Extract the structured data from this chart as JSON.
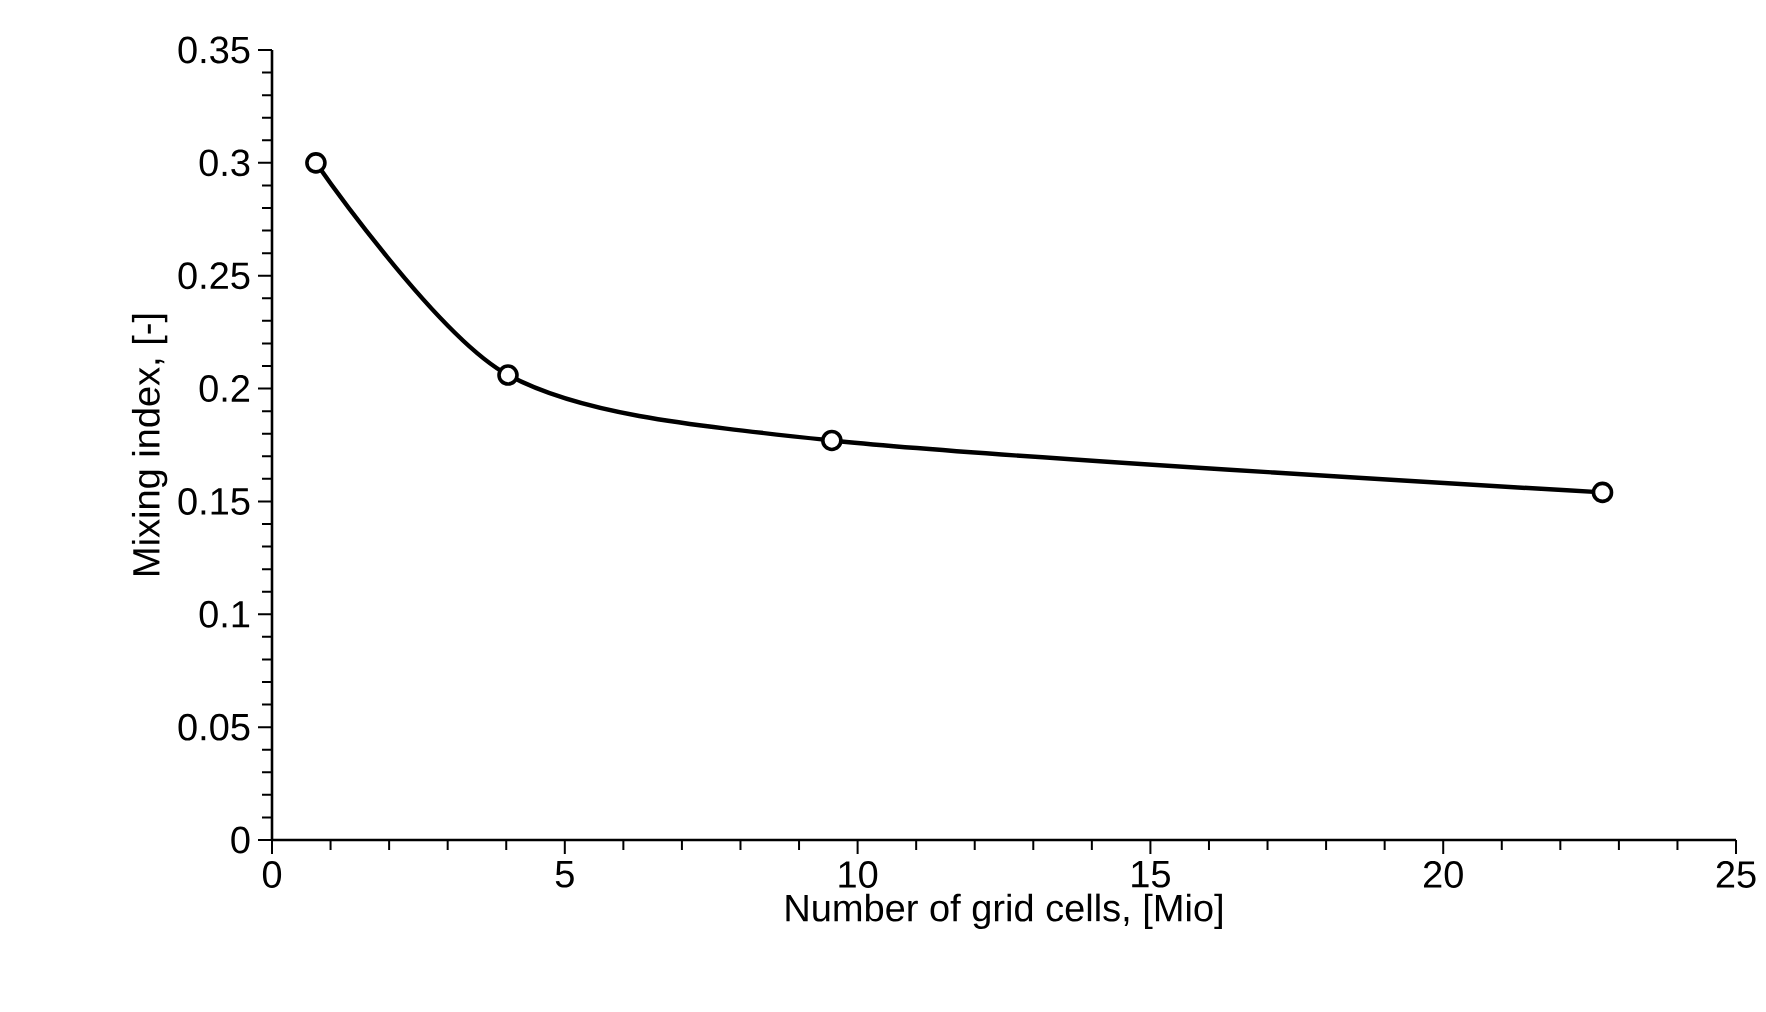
{
  "chart_data": {
    "type": "line",
    "xlabel": "Number of grid cells, [Mio]",
    "ylabel": "Mixing index, [-]",
    "series": [
      {
        "color": "#000000",
        "x": [
          0.75,
          4.03,
          9.56,
          22.72
        ],
        "values": [
          0.3,
          0.206,
          0.177,
          0.154
        ]
      }
    ],
    "xlim": [
      0,
      25
    ],
    "ylim": [
      0,
      0.35
    ],
    "xticks": [
      0,
      5,
      10,
      15,
      20,
      25
    ],
    "yticks": [
      0,
      0.05,
      0.1,
      0.15,
      0.2,
      0.25,
      0.3,
      0.35
    ],
    "marker": "circle"
  }
}
